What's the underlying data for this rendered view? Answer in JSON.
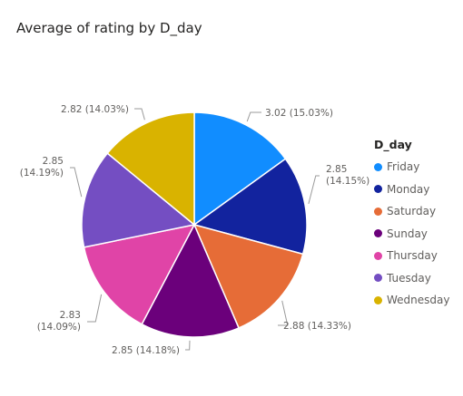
{
  "chart_data": {
    "type": "pie",
    "title": "Average of rating by D_day",
    "legend_title": "D_day",
    "legend_position": "right",
    "slices": [
      {
        "label": "Friday",
        "value": 3.02,
        "percent_label": "15.03%",
        "color": "#118DFF"
      },
      {
        "label": "Monday",
        "value": 2.85,
        "percent_label": "14.15%",
        "color": "#12239E"
      },
      {
        "label": "Saturday",
        "value": 2.88,
        "percent_label": "14.33%",
        "color": "#E66C37"
      },
      {
        "label": "Sunday",
        "value": 2.85,
        "percent_label": "14.18%",
        "color": "#6B007B"
      },
      {
        "label": "Thursday",
        "value": 2.83,
        "percent_label": "14.09%",
        "color": "#E044A7"
      },
      {
        "label": "Tuesday",
        "value": 2.85,
        "percent_label": "14.19%",
        "color": "#744EC2"
      },
      {
        "label": "Wednesday",
        "value": 2.82,
        "percent_label": "14.03%",
        "color": "#D9B300"
      }
    ]
  }
}
